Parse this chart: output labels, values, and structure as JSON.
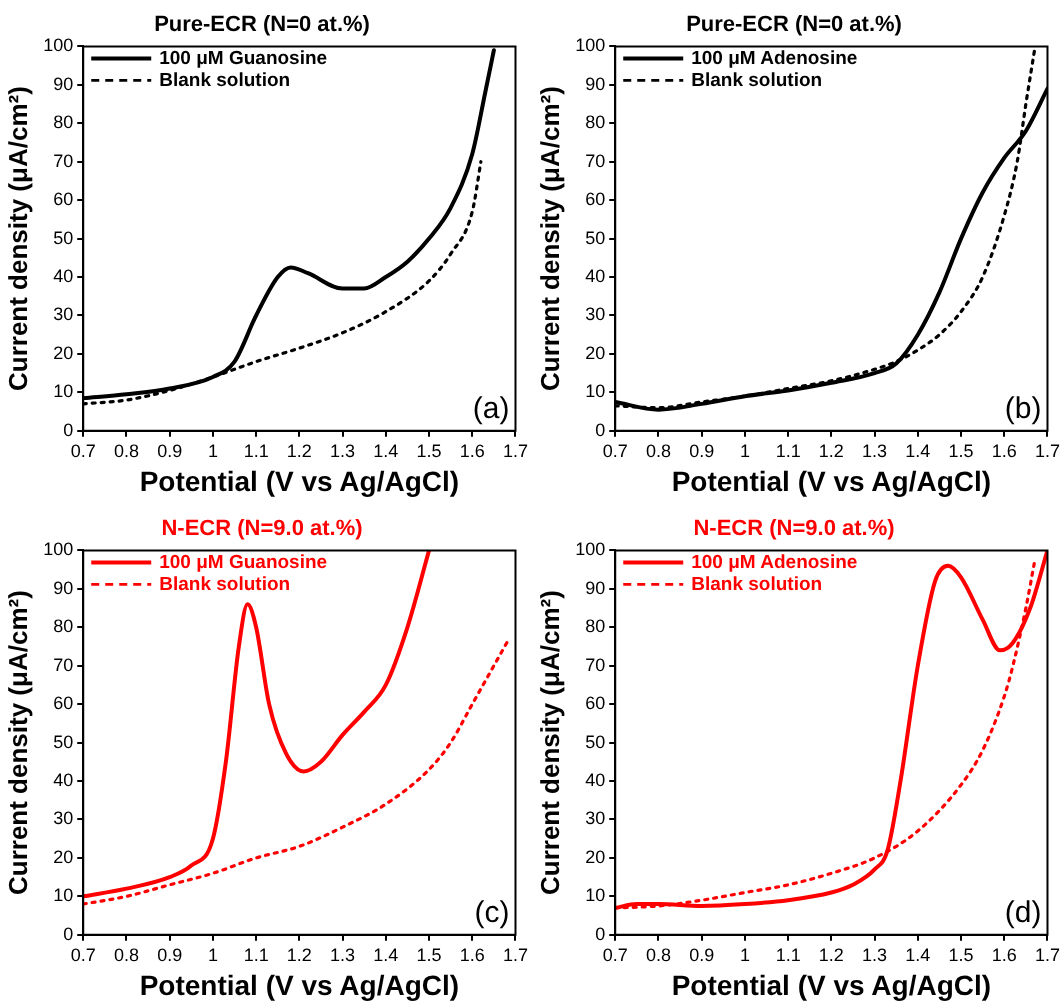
{
  "chart_data": [
    {
      "type": "line",
      "title": "Pure-ECR (N=0 at.%)",
      "xlabel": "Potential (V vs Ag/AgCl)",
      "ylabel": "Current density (μA/cm²)",
      "xlim": [
        0.7,
        1.7
      ],
      "xticks": [
        0.7,
        0.8,
        0.9,
        1.0,
        1.1,
        1.2,
        1.3,
        1.4,
        1.5,
        1.6,
        1.7
      ],
      "ylim": [
        0,
        100
      ],
      "yticks": [
        0,
        10,
        20,
        30,
        40,
        50,
        60,
        70,
        80,
        90,
        100
      ],
      "legend": "top left",
      "marker": "none",
      "annotations": [
        "(a)"
      ],
      "series": [
        {
          "name": "100 μM Guanosine",
          "color": "#000000",
          "line_style": "solid",
          "x": [
            0.7,
            0.8,
            0.9,
            1.0,
            1.05,
            1.1,
            1.15,
            1.18,
            1.22,
            1.3,
            1.35,
            1.4,
            1.45,
            1.5,
            1.55,
            1.6,
            1.63,
            1.65
          ],
          "values": [
            8.5,
            9.5,
            11,
            14,
            18,
            30,
            40,
            42.5,
            41,
            37,
            37,
            40,
            44,
            50,
            58,
            72,
            88,
            99
          ]
        },
        {
          "name": "Blank solution",
          "color": "#000000",
          "line_style": "dotted",
          "x": [
            0.7,
            0.8,
            0.9,
            1.0,
            1.1,
            1.2,
            1.3,
            1.4,
            1.5,
            1.55,
            1.6,
            1.62
          ],
          "values": [
            7,
            8,
            10.5,
            14,
            18,
            21.5,
            25.5,
            31,
            39,
            46,
            57,
            70
          ]
        }
      ]
    },
    {
      "type": "line",
      "title": "Pure-ECR (N=0 at.%)",
      "xlabel": "Potential (V vs Ag/AgCl)",
      "ylabel": "Current density (μA/cm²)",
      "xlim": [
        0.7,
        1.7
      ],
      "xticks": [
        0.7,
        0.8,
        0.9,
        1.0,
        1.1,
        1.2,
        1.3,
        1.4,
        1.5,
        1.6,
        1.7
      ],
      "ylim": [
        0,
        100
      ],
      "yticks": [
        0,
        10,
        20,
        30,
        40,
        50,
        60,
        70,
        80,
        90,
        100
      ],
      "legend": "top left",
      "marker": "none",
      "annotations": [
        "(b)"
      ],
      "series": [
        {
          "name": "100 μM Adenosine",
          "color": "#000000",
          "line_style": "solid",
          "x": [
            0.7,
            0.8,
            0.9,
            1.0,
            1.1,
            1.2,
            1.3,
            1.35,
            1.4,
            1.45,
            1.5,
            1.55,
            1.6,
            1.65,
            1.7
          ],
          "values": [
            7.5,
            5.5,
            7,
            9,
            10.5,
            12.5,
            15,
            17.5,
            25,
            36,
            50,
            62,
            71,
            78,
            89
          ]
        },
        {
          "name": "Blank solution",
          "color": "#000000",
          "line_style": "dotted",
          "x": [
            0.7,
            0.8,
            0.9,
            1.0,
            1.1,
            1.2,
            1.3,
            1.35,
            1.4,
            1.45,
            1.5,
            1.55,
            1.6,
            1.63,
            1.65,
            1.67
          ],
          "values": [
            6.5,
            6,
            7.5,
            9,
            11,
            13,
            16,
            18,
            21,
            25,
            31,
            40,
            56,
            70,
            85,
            99
          ]
        }
      ]
    },
    {
      "type": "line",
      "title": "N-ECR (N=9.0 at.%)",
      "xlabel": "Potential (V vs Ag/AgCl)",
      "ylabel": "Current density (μA/cm²)",
      "xlim": [
        0.7,
        1.7
      ],
      "xticks": [
        0.7,
        0.8,
        0.9,
        1.0,
        1.1,
        1.2,
        1.3,
        1.4,
        1.5,
        1.6,
        1.7
      ],
      "ylim": [
        0,
        100
      ],
      "yticks": [
        0,
        10,
        20,
        30,
        40,
        50,
        60,
        70,
        80,
        90,
        100
      ],
      "legend": "top left",
      "marker": "none",
      "annotations": [
        "(c)"
      ],
      "series": [
        {
          "name": "100 μM Guanosine",
          "color": "#ff0000",
          "line_style": "solid",
          "x": [
            0.7,
            0.8,
            0.9,
            0.95,
            1.0,
            1.03,
            1.06,
            1.08,
            1.1,
            1.13,
            1.17,
            1.21,
            1.25,
            1.3,
            1.35,
            1.4,
            1.45,
            1.5
          ],
          "values": [
            10,
            12,
            15,
            18,
            25,
            45,
            75,
            86,
            80,
            60,
            47,
            42.5,
            45,
            52,
            58,
            65,
            80,
            100
          ]
        },
        {
          "name": "Blank solution",
          "color": "#ff0000",
          "line_style": "dotted",
          "x": [
            0.7,
            0.8,
            0.9,
            1.0,
            1.1,
            1.2,
            1.3,
            1.4,
            1.5,
            1.55,
            1.6,
            1.65,
            1.68
          ],
          "values": [
            8,
            10,
            13,
            16,
            20,
            23,
            28,
            34,
            43,
            50,
            60,
            70,
            76
          ]
        }
      ]
    },
    {
      "type": "line",
      "title": "N-ECR (N=9.0 at.%)",
      "xlabel": "Potential (V vs Ag/AgCl)",
      "ylabel": "Current density (μA/cm²)",
      "xlim": [
        0.7,
        1.7
      ],
      "xticks": [
        0.7,
        0.8,
        0.9,
        1.0,
        1.1,
        1.2,
        1.3,
        1.4,
        1.5,
        1.6,
        1.7
      ],
      "ylim": [
        0,
        100
      ],
      "yticks": [
        0,
        10,
        20,
        30,
        40,
        50,
        60,
        70,
        80,
        90,
        100
      ],
      "legend": "top left",
      "marker": "none",
      "annotations": [
        "(d)"
      ],
      "series": [
        {
          "name": "100 μM Adenosine",
          "color": "#ff0000",
          "line_style": "solid",
          "x": [
            0.7,
            0.75,
            0.8,
            0.9,
            1.0,
            1.1,
            1.2,
            1.25,
            1.3,
            1.33,
            1.36,
            1.4,
            1.44,
            1.47,
            1.5,
            1.55,
            1.59,
            1.62,
            1.66,
            1.7
          ],
          "values": [
            7,
            8,
            8,
            7.5,
            8,
            9,
            11,
            13,
            17,
            22,
            40,
            70,
            92,
            96,
            93,
            82,
            74,
            76,
            85,
            100
          ]
        },
        {
          "name": "Blank solution",
          "color": "#ff0000",
          "line_style": "dotted",
          "x": [
            0.7,
            0.8,
            0.9,
            1.0,
            1.1,
            1.2,
            1.3,
            1.4,
            1.5,
            1.55,
            1.6,
            1.62,
            1.65,
            1.67
          ],
          "values": [
            7,
            7.5,
            9,
            11,
            13,
            16,
            20,
            27,
            39,
            48,
            62,
            70,
            85,
            97
          ]
        }
      ]
    }
  ]
}
